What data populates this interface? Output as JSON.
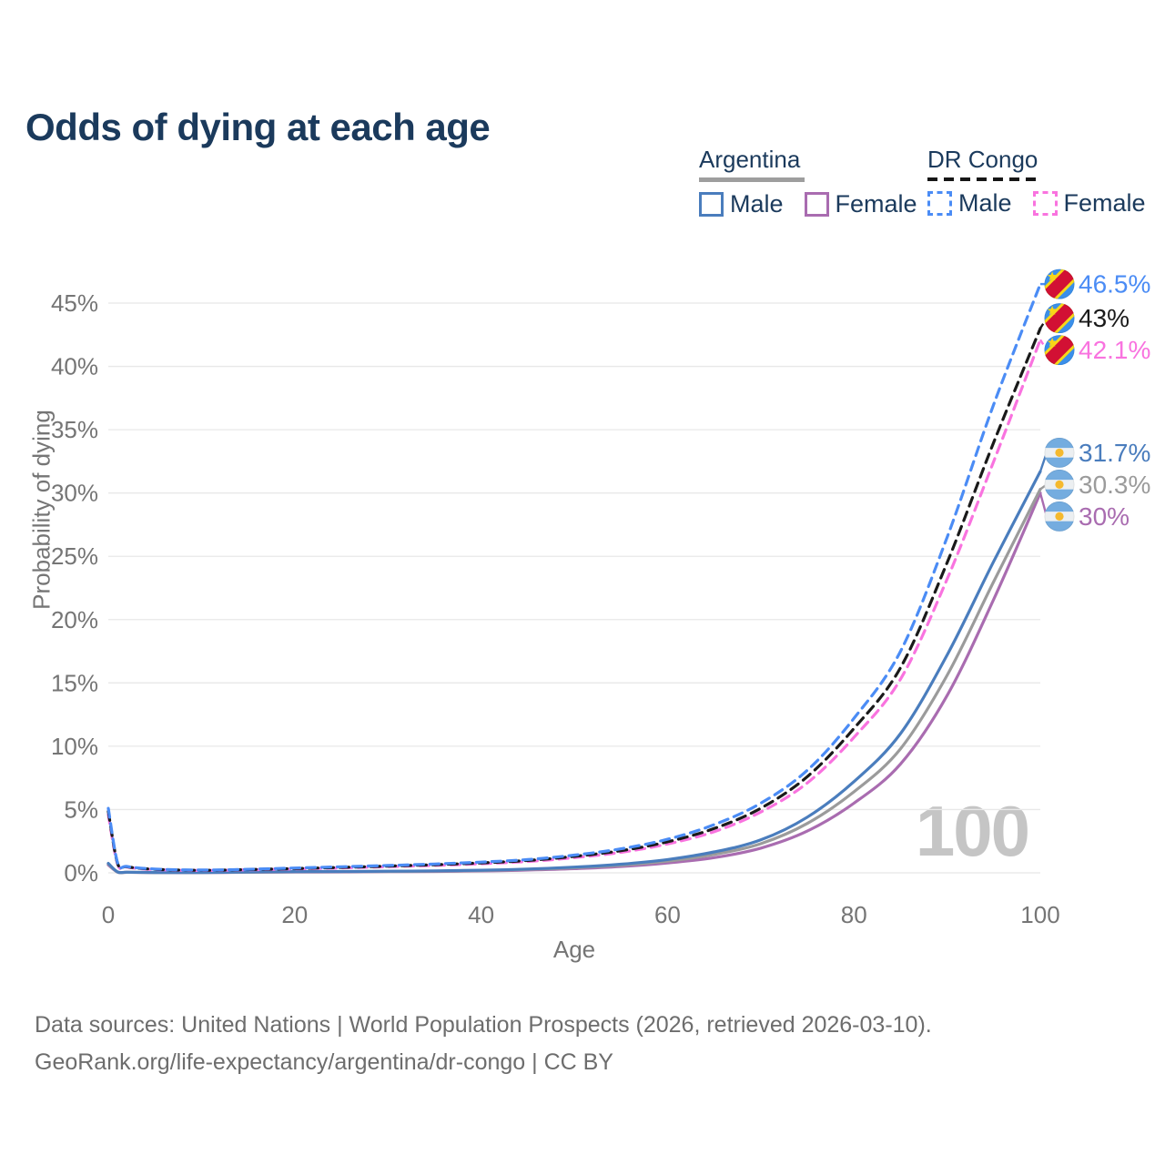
{
  "page": {
    "title": "Odds of dying at each age",
    "watermark": "100"
  },
  "legend": {
    "groups": [
      {
        "heading": "Argentina",
        "underline_style": "solid",
        "underline_color": "#9e9e9e",
        "items": [
          {
            "label": "Male",
            "color": "#4a7dbd",
            "dash": false
          },
          {
            "label": "Female",
            "color": "#a96cb0",
            "dash": false
          }
        ]
      },
      {
        "heading": "DR Congo",
        "underline_style": "dashed",
        "underline_color": "#161616",
        "items": [
          {
            "label": "Male",
            "color": "#4b8cf5",
            "dash": true
          },
          {
            "label": "Female",
            "color": "#f973df",
            "dash": true
          }
        ]
      }
    ]
  },
  "axes": {
    "y": {
      "label": "Probability of dying",
      "tick_suffix": "%"
    },
    "x": {
      "label": "Age"
    }
  },
  "footer": {
    "line1": "Data sources: United Nations | World Population Prospects (2026, retrieved 2026-03-10).",
    "line2": "GeoRank.org/life-expectancy/argentina/dr-congo | CC BY"
  },
  "colors": {
    "grid": "#e8e8e8",
    "tick_text": "#757575",
    "title_text": "#1b3a5c",
    "footer_text": "#6d6d6d",
    "watermark": "#c5c5c5"
  },
  "flags": {
    "cd": {
      "name": "dr-congo-flag",
      "blue": "#3a8fea",
      "red": "#d21034",
      "yellow": "#f7d618"
    },
    "ar": {
      "name": "argentina-flag",
      "blue": "#74acdf",
      "white": "#eceff1",
      "sun": "#f5b92e"
    }
  },
  "chart_data": {
    "type": "line",
    "title": "Odds of dying at each age",
    "xlabel": "Age",
    "ylabel": "Probability of dying",
    "xlim": [
      0,
      100
    ],
    "ylim_pct": [
      0,
      47
    ],
    "grid": "horizontal",
    "legend_position": "top-right",
    "hover_age_annotation": "100",
    "y_ticks_pct": [
      0,
      5,
      10,
      15,
      20,
      25,
      30,
      35,
      40,
      45
    ],
    "x_ticks": [
      0,
      20,
      40,
      60,
      80,
      100
    ],
    "ages": [
      0,
      1,
      2,
      5,
      10,
      15,
      20,
      25,
      30,
      35,
      40,
      45,
      50,
      55,
      60,
      65,
      70,
      75,
      80,
      85,
      90,
      95,
      100
    ],
    "series": [
      {
        "id": "drcongo-male",
        "country": "DR Congo",
        "sex": "Male",
        "color": "#4b8cf5",
        "dash": true,
        "flag": "cd",
        "end_label": "46.5%",
        "values_pct": [
          5.1,
          0.8,
          0.5,
          0.3,
          0.22,
          0.28,
          0.38,
          0.48,
          0.58,
          0.7,
          0.85,
          1.05,
          1.4,
          1.9,
          2.65,
          3.8,
          5.5,
          8.1,
          12.2,
          17.5,
          26.5,
          37.0,
          46.5
        ]
      },
      {
        "id": "drcongo-both",
        "country": "DR Congo",
        "sex": "Both sexes",
        "color": "#1a1a1a",
        "dash": true,
        "flag": "cd",
        "end_label": "43%",
        "values_pct": [
          4.85,
          0.75,
          0.48,
          0.28,
          0.2,
          0.26,
          0.34,
          0.43,
          0.53,
          0.64,
          0.78,
          0.98,
          1.3,
          1.75,
          2.45,
          3.5,
          5.1,
          7.6,
          11.4,
          16.2,
          24.5,
          34.0,
          43.0
        ]
      },
      {
        "id": "drcongo-female",
        "country": "DR Congo",
        "sex": "Female",
        "color": "#f973df",
        "dash": true,
        "flag": "cd",
        "end_label": "42.1%",
        "values_pct": [
          4.6,
          0.7,
          0.45,
          0.26,
          0.19,
          0.24,
          0.31,
          0.39,
          0.49,
          0.59,
          0.72,
          0.9,
          1.2,
          1.62,
          2.28,
          3.25,
          4.8,
          7.1,
          10.7,
          15.3,
          23.2,
          32.5,
          42.1
        ]
      },
      {
        "id": "argentina-male",
        "country": "Argentina",
        "sex": "Male",
        "color": "#4a7dbd",
        "dash": false,
        "flag": "ar",
        "end_label": "31.7%",
        "values_pct": [
          0.75,
          0.07,
          0.05,
          0.03,
          0.03,
          0.07,
          0.1,
          0.11,
          0.13,
          0.16,
          0.21,
          0.3,
          0.45,
          0.68,
          1.05,
          1.65,
          2.6,
          4.4,
          7.2,
          11.0,
          17.2,
          24.6,
          31.7
        ]
      },
      {
        "id": "argentina-both",
        "country": "Argentina",
        "sex": "Both sexes",
        "color": "#9b9b9b",
        "dash": false,
        "flag": "ar",
        "end_label": "30.3%",
        "values_pct": [
          0.7,
          0.06,
          0.04,
          0.03,
          0.03,
          0.05,
          0.08,
          0.09,
          0.11,
          0.13,
          0.18,
          0.27,
          0.4,
          0.6,
          0.92,
          1.45,
          2.3,
          3.9,
          6.4,
          9.8,
          15.6,
          23.0,
          30.3
        ]
      },
      {
        "id": "argentina-female",
        "country": "Argentina",
        "sex": "Female",
        "color": "#a96cb0",
        "dash": false,
        "flag": "ar",
        "end_label": "30%",
        "values_pct": [
          0.62,
          0.06,
          0.04,
          0.02,
          0.02,
          0.04,
          0.06,
          0.07,
          0.09,
          0.11,
          0.15,
          0.22,
          0.33,
          0.5,
          0.78,
          1.2,
          1.95,
          3.3,
          5.5,
          8.6,
          14.0,
          21.6,
          30.0
        ]
      }
    ]
  }
}
